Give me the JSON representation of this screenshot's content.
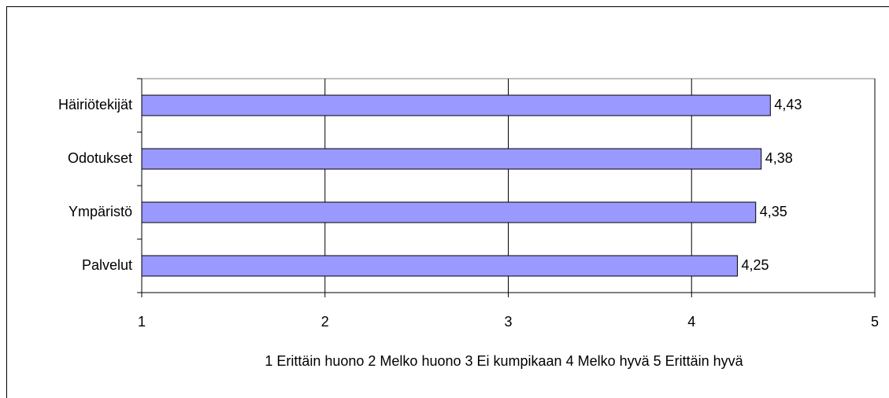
{
  "chart_data": {
    "type": "hbar",
    "categories": [
      "Häiriötekijät",
      "Odotukset",
      "Ympäristö",
      "Palvelut"
    ],
    "values": [
      4.43,
      4.38,
      4.35,
      4.25
    ],
    "value_labels": [
      "4,43",
      "4,38",
      "4,35",
      "4,25"
    ],
    "color": "#9999ff",
    "xlim": [
      1,
      5
    ],
    "xticks": [
      1,
      2,
      3,
      4,
      5
    ],
    "xlabel": "1 Erittäin huono 2 Melko huono 3 Ei kumpikaan 4 Melko hyvä 5 Erittäin hyvä",
    "grid": true
  }
}
